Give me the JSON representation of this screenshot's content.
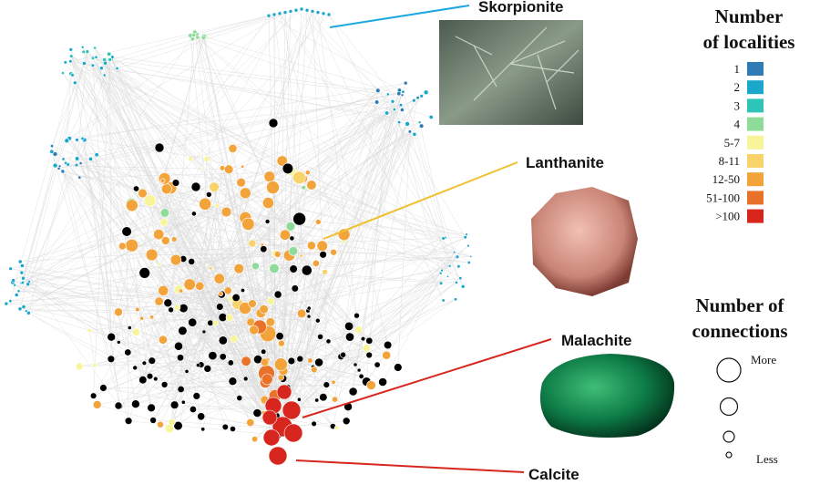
{
  "labels": {
    "skorpionite": "Skorpionite",
    "lanthanite": "Lanthanite",
    "malachite": "Malachite",
    "calcite": "Calcite"
  },
  "legend_localities": {
    "title_line1": "Number",
    "title_line2": "of localities",
    "items": [
      {
        "label": "1",
        "color": "#2f7bb5"
      },
      {
        "label": "2",
        "color": "#1ba7cc"
      },
      {
        "label": "3",
        "color": "#2ec4b6"
      },
      {
        "label": "4",
        "color": "#8fdc9a"
      },
      {
        "label": "5-7",
        "color": "#f7f49a"
      },
      {
        "label": "8-11",
        "color": "#f7d36a"
      },
      {
        "label": "12-50",
        "color": "#f2a33a"
      },
      {
        "label": "51-100",
        "color": "#e8722a"
      },
      {
        "label": ">100",
        "color": "#d7261e"
      }
    ]
  },
  "legend_connections": {
    "title_line1": "Number of",
    "title_line2": "connections",
    "more": "More",
    "less": "Less"
  }
}
